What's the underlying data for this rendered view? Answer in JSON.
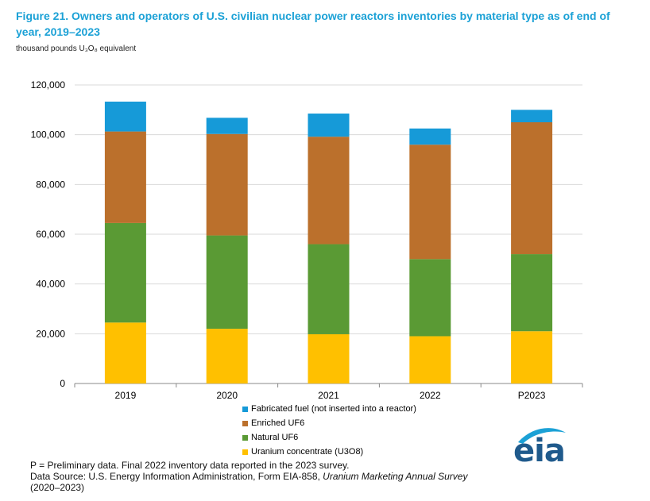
{
  "title": "Figure 21. Owners and operators of U.S. civilian nuclear power reactors inventories by material type as of end of year, 2019–2023",
  "units": "thousand pounds U₃O₈ equivalent",
  "chart_data": {
    "type": "bar",
    "stacked": true,
    "categories": [
      "2019",
      "2020",
      "2021",
      "2022",
      "P2023"
    ],
    "ylim": [
      0,
      120000
    ],
    "yticks": [
      "0",
      "20,000",
      "40,000",
      "60,000",
      "80,000",
      "100,000",
      "120,000"
    ],
    "grid": true,
    "legend_position": "bottom",
    "series": [
      {
        "name": "Uranium concentrate (U3O8)",
        "color": "#ffc000",
        "values": [
          24500,
          22000,
          19800,
          19000,
          21000
        ]
      },
      {
        "name": "Natural UF6",
        "color": "#5a9a34",
        "values": [
          40000,
          37500,
          36200,
          31000,
          31000
        ]
      },
      {
        "name": "Enriched UF6",
        "color": "#bb702c",
        "values": [
          36800,
          40800,
          43200,
          46000,
          53000
        ]
      },
      {
        "name": "Fabricated fuel (not inserted into a reactor)",
        "color": "#169ad8",
        "values": [
          12000,
          6500,
          9300,
          6500,
          5000
        ]
      }
    ]
  },
  "legend": [
    {
      "label": "Fabricated fuel (not inserted into a reactor)",
      "color": "#169ad8"
    },
    {
      "label": "Enriched UF6",
      "color": "#bb702c"
    },
    {
      "label": "Natural UF6",
      "color": "#5a9a34"
    },
    {
      "label": "Uranium concentrate (U3O8)",
      "color": "#ffc000"
    }
  ],
  "notes": {
    "preliminary": "P = Preliminary data. Final 2022 inventory data reported in the 2023 survey.",
    "source_prefix": "Data Source: U.S. Energy Information Administration, Form EIA-858, ",
    "source_title": "Uranium Marketing Annual Survey",
    "source_years": "(2020–2023)"
  },
  "logo": {
    "text": "eia",
    "icon": "eia-swoosh-icon",
    "color": "#1f5a8c",
    "accent": "#1ba1d6"
  }
}
